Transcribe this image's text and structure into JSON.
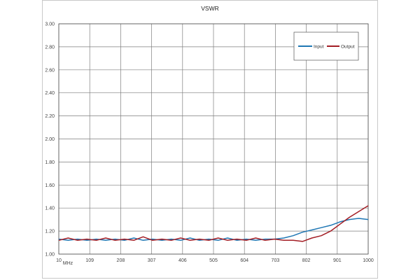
{
  "chart_data": {
    "type": "line",
    "title": "VSWR",
    "xlabel": "MHz",
    "ylabel": "",
    "xlim": [
      10,
      1000
    ],
    "ylim": [
      1.0,
      3.0
    ],
    "x_ticks": [
      "10",
      "109",
      "208",
      "307",
      "406",
      "505",
      "604",
      "703",
      "802",
      "901",
      "1000"
    ],
    "y_ticks": [
      "1.00",
      "1.20",
      "1.40",
      "1.60",
      "1.80",
      "2.00",
      "2.20",
      "2.40",
      "2.60",
      "2.80",
      "3.00"
    ],
    "grid": true,
    "legend_position": "top-right",
    "x": [
      10,
      40,
      70,
      100,
      130,
      160,
      190,
      220,
      250,
      280,
      310,
      340,
      370,
      400,
      430,
      460,
      490,
      520,
      550,
      580,
      610,
      640,
      670,
      700,
      730,
      760,
      790,
      820,
      850,
      880,
      910,
      940,
      970,
      1000
    ],
    "series": [
      {
        "name": "Input",
        "color": "#1f77b4",
        "values": [
          1.13,
          1.12,
          1.13,
          1.12,
          1.13,
          1.12,
          1.13,
          1.12,
          1.14,
          1.12,
          1.13,
          1.12,
          1.13,
          1.12,
          1.14,
          1.12,
          1.13,
          1.12,
          1.14,
          1.12,
          1.13,
          1.12,
          1.13,
          1.13,
          1.14,
          1.16,
          1.19,
          1.21,
          1.23,
          1.25,
          1.28,
          1.3,
          1.31,
          1.3
        ]
      },
      {
        "name": "Output",
        "color": "#a31d24",
        "values": [
          1.12,
          1.14,
          1.12,
          1.13,
          1.12,
          1.14,
          1.12,
          1.13,
          1.12,
          1.15,
          1.12,
          1.13,
          1.12,
          1.14,
          1.12,
          1.13,
          1.12,
          1.14,
          1.12,
          1.13,
          1.12,
          1.14,
          1.12,
          1.13,
          1.12,
          1.12,
          1.11,
          1.14,
          1.16,
          1.2,
          1.26,
          1.32,
          1.37,
          1.42
        ]
      }
    ]
  }
}
